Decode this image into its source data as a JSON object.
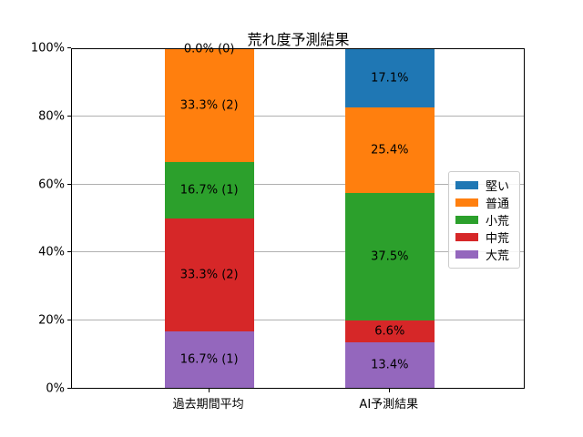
{
  "chart_data": {
    "type": "bar",
    "stacked": true,
    "title": "荒れ度予測結果",
    "categories": [
      "過去期間平均",
      "AI予測結果"
    ],
    "series": [
      {
        "name": "堅い",
        "color": "#1f77b4",
        "values": [
          0.0,
          17.1
        ],
        "labels": [
          "0.0% (0)",
          "17.1%"
        ]
      },
      {
        "name": "普通",
        "color": "#ff7f0e",
        "values": [
          33.3,
          25.4
        ],
        "labels": [
          "33.3% (2)",
          "25.4%"
        ]
      },
      {
        "name": "小荒",
        "color": "#2ca02c",
        "values": [
          16.7,
          37.5
        ],
        "labels": [
          "16.7% (1)",
          "37.5%"
        ]
      },
      {
        "name": "中荒",
        "color": "#d62728",
        "values": [
          33.3,
          6.6
        ],
        "labels": [
          "33.3% (2)",
          "6.6%"
        ]
      },
      {
        "name": "大荒",
        "color": "#9467bd",
        "values": [
          16.7,
          13.4
        ],
        "labels": [
          "16.7% (1)",
          "13.4%"
        ]
      }
    ],
    "yticks": [
      {
        "value": 0,
        "label": "0%"
      },
      {
        "value": 20,
        "label": "20%"
      },
      {
        "value": 40,
        "label": "40%"
      },
      {
        "value": 60,
        "label": "60%"
      },
      {
        "value": 80,
        "label": "80%"
      },
      {
        "value": 100,
        "label": "100%"
      }
    ],
    "ylim": [
      0,
      100
    ],
    "grid": true,
    "grid_color": "#b0b0b0",
    "legend_position": "center right",
    "legend_order": [
      "堅い",
      "普通",
      "小荒",
      "中荒",
      "大荒"
    ]
  }
}
